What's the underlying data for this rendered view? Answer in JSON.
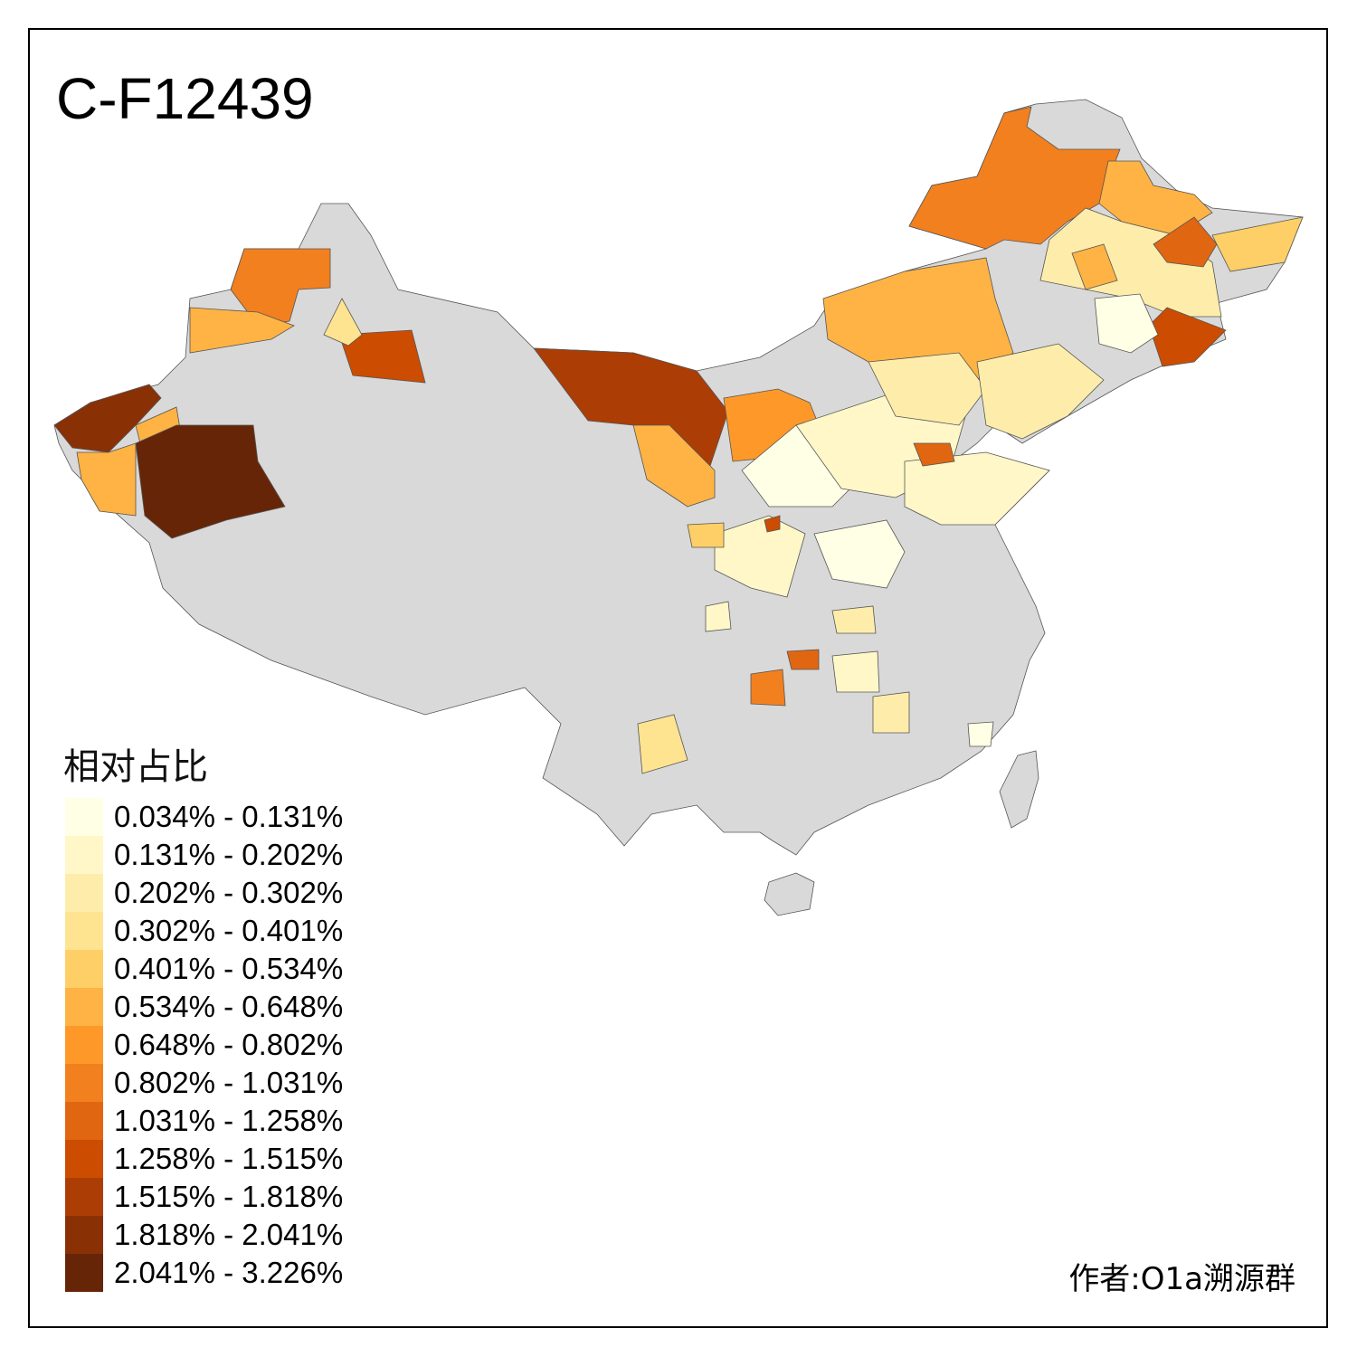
{
  "title": "C-F12439",
  "legend": {
    "title": "相对占比",
    "items": [
      {
        "label": "0.034% - 0.131%",
        "color": "#FFFFE5"
      },
      {
        "label": "0.131% - 0.202%",
        "color": "#FFF7C8"
      },
      {
        "label": "0.202% - 0.302%",
        "color": "#FEEDAA"
      },
      {
        "label": "0.302% - 0.401%",
        "color": "#FEE391"
      },
      {
        "label": "0.401% - 0.534%",
        "color": "#FECF66"
      },
      {
        "label": "0.534% - 0.648%",
        "color": "#FEB344"
      },
      {
        "label": "0.648% - 0.802%",
        "color": "#FE9929"
      },
      {
        "label": "0.802% - 1.031%",
        "color": "#F2801F"
      },
      {
        "label": "1.031% - 1.258%",
        "color": "#E16612"
      },
      {
        "label": "1.258% - 1.515%",
        "color": "#CC4C02"
      },
      {
        "label": "1.515% - 1.818%",
        "color": "#AC3D04"
      },
      {
        "label": "1.818% - 2.041%",
        "color": "#8A3005"
      },
      {
        "label": "2.041% - 3.226%",
        "color": "#662506"
      }
    ]
  },
  "no_data_color": "#D9D9D9",
  "author": "作者:O1a溯源群"
}
